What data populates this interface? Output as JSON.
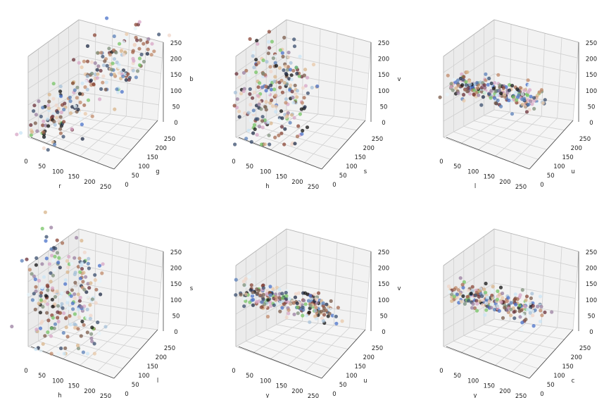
{
  "chart_data": [
    {
      "type": "scatter",
      "projection": "3d",
      "xlabel": "r",
      "ylabel": "g",
      "zlabel": "b",
      "x_ticks": [
        "0",
        "50",
        "100",
        "150",
        "200",
        "250"
      ],
      "y_ticks": [
        "0",
        "50",
        "100",
        "150",
        "200",
        "250"
      ],
      "z_ticks": [
        "0",
        "50",
        "100",
        "150",
        "200",
        "250"
      ],
      "xlim": [
        0,
        255
      ],
      "ylim": [
        0,
        255
      ],
      "zlim": [
        0,
        255
      ],
      "grid": true,
      "cloud": "diagonal"
    },
    {
      "type": "scatter",
      "projection": "3d",
      "xlabel": "h",
      "ylabel": "s",
      "zlabel": "v",
      "x_ticks": [
        "0",
        "50",
        "100",
        "150",
        "200",
        "250"
      ],
      "y_ticks": [
        "0",
        "50",
        "100",
        "150",
        "200",
        "250"
      ],
      "z_ticks": [
        "0",
        "50",
        "100",
        "150",
        "200",
        "250"
      ],
      "xlim": [
        0,
        255
      ],
      "ylim": [
        0,
        255
      ],
      "zlim": [
        0,
        255
      ],
      "grid": true,
      "cloud": "hsv"
    },
    {
      "type": "scatter",
      "projection": "3d",
      "xlabel": "l",
      "ylabel": "u",
      "zlabel": "v",
      "x_ticks": [
        "0",
        "50",
        "100",
        "150",
        "200",
        "250"
      ],
      "y_ticks": [
        "0",
        "50",
        "100",
        "150",
        "200",
        "250"
      ],
      "z_ticks": [
        "0",
        "50",
        "100",
        "150",
        "200",
        "250"
      ],
      "xlim": [
        0,
        255
      ],
      "ylim": [
        0,
        255
      ],
      "zlim": [
        0,
        255
      ],
      "grid": true,
      "cloud": "flat"
    },
    {
      "type": "scatter",
      "projection": "3d",
      "xlabel": "h",
      "ylabel": "l",
      "zlabel": "s",
      "x_ticks": [
        "0",
        "50",
        "100",
        "150",
        "200",
        "250"
      ],
      "y_ticks": [
        "0",
        "50",
        "100",
        "150",
        "200",
        "250"
      ],
      "z_ticks": [
        "0",
        "50",
        "100",
        "150",
        "200",
        "250"
      ],
      "xlim": [
        0,
        255
      ],
      "ylim": [
        0,
        255
      ],
      "zlim": [
        0,
        255
      ],
      "grid": true,
      "cloud": "hls"
    },
    {
      "type": "scatter",
      "projection": "3d",
      "xlabel": "y",
      "ylabel": "u",
      "zlabel": "v",
      "x_ticks": [
        "0",
        "50",
        "100",
        "150",
        "200",
        "250"
      ],
      "y_ticks": [
        "0",
        "50",
        "100",
        "150",
        "200",
        "250"
      ],
      "z_ticks": [
        "0",
        "50",
        "100",
        "150",
        "200",
        "250"
      ],
      "xlim": [
        0,
        255
      ],
      "ylim": [
        0,
        255
      ],
      "zlim": [
        0,
        255
      ],
      "grid": true,
      "cloud": "flat"
    },
    {
      "type": "scatter",
      "projection": "3d",
      "xlabel": "y",
      "ylabel": "c",
      "zlabel": "v",
      "x_ticks": [
        "0",
        "50",
        "100",
        "150",
        "200",
        "250"
      ],
      "y_ticks": [
        "0",
        "50",
        "100",
        "150",
        "200",
        "250"
      ],
      "z_ticks": [
        "0",
        "50",
        "100",
        "150",
        "200",
        "250"
      ],
      "xlim": [
        0,
        255
      ],
      "ylim": [
        0,
        255
      ],
      "zlim": [
        0,
        255
      ],
      "grid": true,
      "cloud": "flat"
    }
  ],
  "colors": {
    "pane_back": "#f2f2f2",
    "pane_side": "#ebebeb",
    "pane_floor": "#f5f5f5",
    "grid": "#d0d0d0",
    "axis": "#444444",
    "palette": [
      "#111111",
      "#1e2a44",
      "#3a4e6e",
      "#5a7fb8",
      "#4a72c9",
      "#7a5a48",
      "#8a4535",
      "#a46a50",
      "#c08a6a",
      "#d8b48a",
      "#e8c8a8",
      "#7d8f7a",
      "#a5c0d8",
      "#c9e4f5",
      "#e6f4fb",
      "#f0d6c8",
      "#d7a6c5",
      "#6a3038",
      "#9a7fa0",
      "#77c466"
    ]
  }
}
